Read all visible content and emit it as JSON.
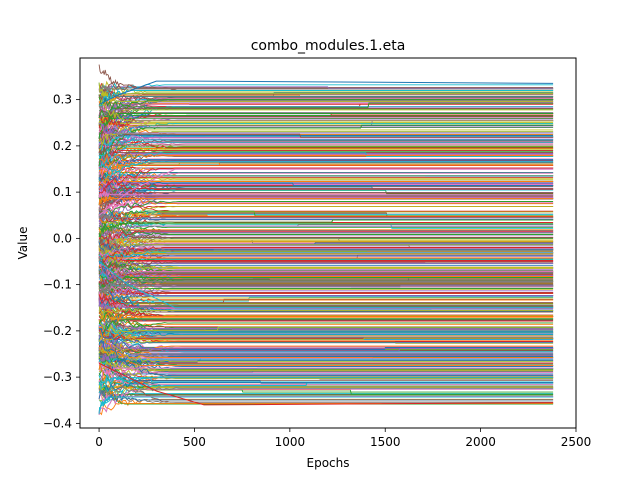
{
  "chart_data": {
    "type": "line",
    "title": "combo_modules.1.eta",
    "xlabel": "Epochs",
    "ylabel": "Value",
    "xlim": [
      -100,
      2500
    ],
    "ylim": [
      -0.41,
      0.39
    ],
    "x_ticks": [
      0,
      500,
      1000,
      1500,
      2000,
      2500
    ],
    "y_ticks": [
      -0.4,
      -0.3,
      -0.2,
      -0.1,
      0.0,
      0.1,
      0.2,
      0.3
    ],
    "x_tick_labels": [
      "0",
      "500",
      "1000",
      "1500",
      "2000",
      "2500"
    ],
    "y_tick_labels": [
      "−0.4",
      "−0.3",
      "−0.2",
      "−0.1",
      "0.0",
      "0.1",
      "0.2",
      "0.3"
    ],
    "x_range_of_data": [
      0,
      2380
    ],
    "grid": false,
    "legend": "none",
    "palette": [
      "#1f77b4",
      "#ff7f0e",
      "#2ca02c",
      "#d62728",
      "#9467bd",
      "#8c564b",
      "#e377c2",
      "#7f7f7f",
      "#bcbd22",
      "#17becf"
    ],
    "series_count_estimate": 600,
    "series_final_value_range": [
      -0.36,
      0.34
    ],
    "series_example": [
      {
        "x": [
          0,
          100,
          300,
          500,
          2380
        ],
        "y": [
          0.29,
          0.31,
          0.34,
          0.34,
          0.335
        ]
      },
      {
        "x": [
          0,
          100,
          300,
          550,
          2380
        ],
        "y": [
          -0.27,
          -0.29,
          -0.33,
          -0.36,
          -0.355
        ]
      },
      {
        "x": [
          0,
          150,
          400,
          2380
        ],
        "y": [
          0.05,
          0.1,
          0.15,
          0.15
        ]
      },
      {
        "x": [
          0,
          150,
          400,
          2380
        ],
        "y": [
          -0.05,
          -0.1,
          -0.15,
          -0.15
        ]
      }
    ]
  }
}
